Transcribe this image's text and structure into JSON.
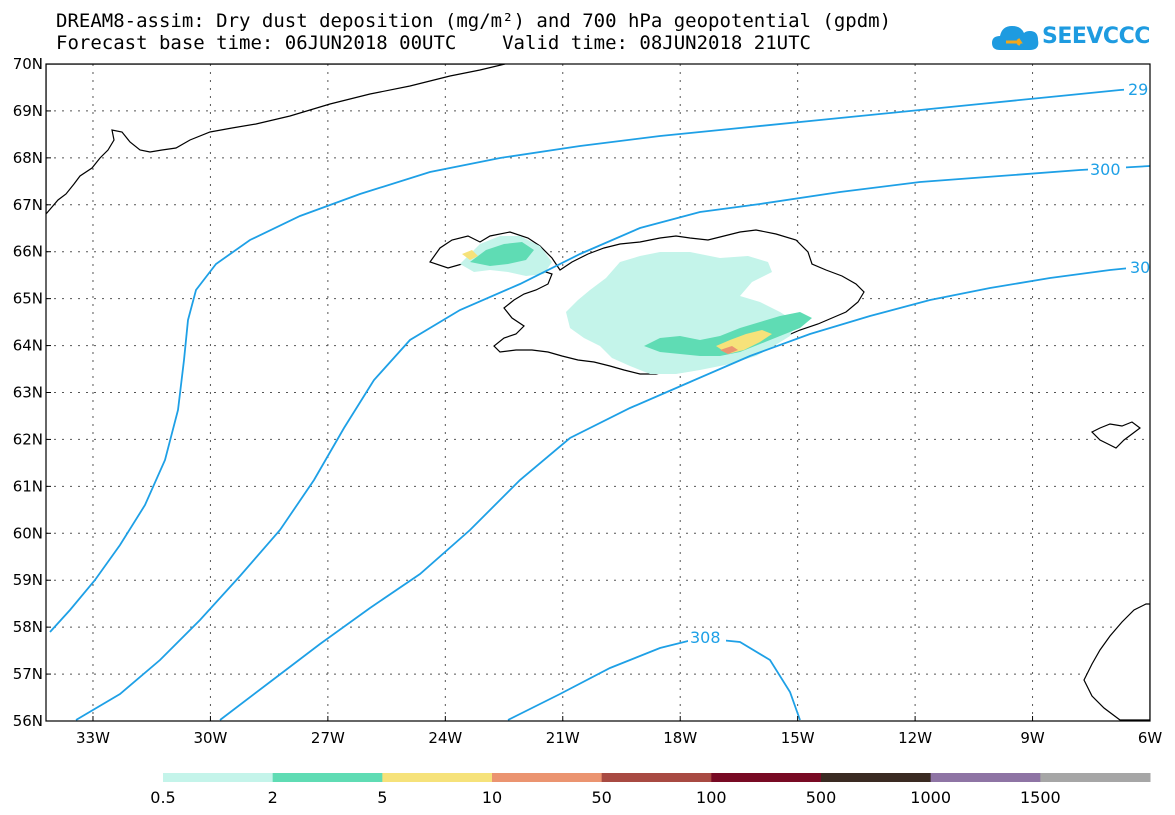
{
  "header": {
    "title_line1": "DREAM8-assim: Dry dust deposition (mg/m²) and 700 hPa geopotential (gpdm)",
    "title_line2": "Forecast base time: 06JUN2018 00UTC    Valid time: 08JUN2018 21UTC",
    "logo_text": "SEEVCCC"
  },
  "map": {
    "lon_range": [
      -34.2,
      -6
    ],
    "lat_range": [
      56,
      70
    ],
    "lon_labels": [
      "33W",
      "30W",
      "27W",
      "24W",
      "21W",
      "18W",
      "15W",
      "12W",
      "9W",
      "6W"
    ],
    "lon_values": [
      -33,
      -30,
      -27,
      -24,
      -21,
      -18,
      -15,
      -12,
      -9,
      -6
    ],
    "lat_labels": [
      "70N",
      "69N",
      "68N",
      "67N",
      "66N",
      "65N",
      "64N",
      "63N",
      "62N",
      "61N",
      "60N",
      "59N",
      "58N",
      "57N",
      "56N"
    ],
    "lat_values": [
      70,
      69,
      68,
      67,
      66,
      65,
      64,
      63,
      62,
      61,
      60,
      59,
      58,
      57,
      56
    ],
    "grid": true,
    "contour_color": "#1ea0e6",
    "contour_labels": [
      "29",
      "300",
      "30",
      "308"
    ]
  },
  "legend": {
    "colors": [
      "#c4f4ea",
      "#5fdcb4",
      "#f6e27a",
      "#eb9470",
      "#a84a42",
      "#780a24",
      "#3a2a22",
      "#8e74a4",
      "#a6a6a6"
    ],
    "labels": [
      "0.5",
      "2",
      "5",
      "10",
      "50",
      "100",
      "500",
      "1000",
      "1500"
    ]
  }
}
